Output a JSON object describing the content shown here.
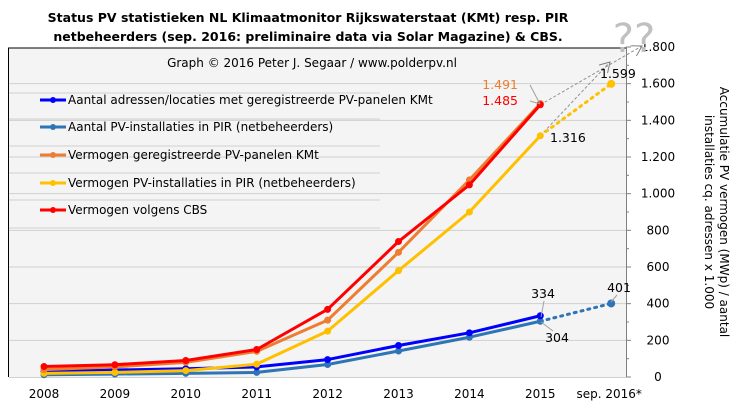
{
  "chart_data": {
    "type": "line",
    "title": "Status PV statistieken NL Klimaatmonitor Rijkswaterstaat (KMt) resp. PIR netbeheerders (sep. 2016: preliminaire data via Solar Magazine) & CBS.",
    "title_lines": [
      "Status PV statistieken NL Klimaatmonitor Rijkswaterstaat (KMt) resp. PIR",
      "netbeheerders (sep. 2016: preliminaire data via Solar Magazine) & CBS."
    ],
    "subtitle": "Graph © 2016 Peter J. Segaar / www.polderpv.nl",
    "xlabel": "",
    "ylabel_lines": [
      "Accumulatie PV vermogen (MWp) / aantal",
      "installaties cq. adressen x 1.000"
    ],
    "categories": [
      "2008",
      "2009",
      "2010",
      "2011",
      "2012",
      "2013",
      "2014",
      "2015",
      "sep. 2016*"
    ],
    "ylim": [
      0,
      1800
    ],
    "yticks": [
      0,
      200,
      400,
      600,
      800,
      1000,
      1200,
      1400,
      1600,
      1800
    ],
    "ytick_labels": [
      "0",
      "200",
      "400",
      "600",
      "800",
      "1.000",
      "1.200",
      "1.400",
      "1.600",
      "1.800"
    ],
    "grid": true,
    "legend_position": "top-left",
    "question_mark": "??",
    "series": [
      {
        "name": "Aantal adressen/locaties met geregistreerde PV-panelen KMt",
        "color": "#0000ff",
        "values": [
          30,
          38,
          45,
          55,
          95,
          172,
          241,
          334,
          null
        ]
      },
      {
        "name": "Aantal PV-installaties in PIR (netbeheerders)",
        "color": "#2e75b6",
        "values": [
          12,
          16,
          20,
          25,
          68,
          142,
          217,
          304,
          401
        ],
        "dotted_last": true
      },
      {
        "name": "Vermogen geregistreerde PV-panelen KMt",
        "color": "#ed7d31",
        "values": [
          40,
          55,
          80,
          140,
          310,
          680,
          1075,
          1491,
          null
        ]
      },
      {
        "name": "Vermogen PV-installaties in PIR (netbeheerders)",
        "color": "#ffc000",
        "values": [
          20,
          25,
          35,
          70,
          250,
          580,
          900,
          1316,
          1599
        ],
        "dotted_last": true
      },
      {
        "name": "Vermogen volgens CBS",
        "color": "#ff0000",
        "values": [
          57,
          67,
          90,
          150,
          369,
          739,
          1048,
          1485,
          null
        ]
      }
    ],
    "annotations": [
      {
        "text": "1.491",
        "series": 2,
        "index": 7,
        "color": "#ed7d31"
      },
      {
        "text": "1.485",
        "series": 4,
        "index": 7,
        "color": "#ff0000"
      },
      {
        "text": "1.316",
        "series": 3,
        "index": 7,
        "color": "#000000"
      },
      {
        "text": "1.599",
        "series": 3,
        "index": 8,
        "color": "#000000"
      },
      {
        "text": "334",
        "series": 0,
        "index": 7,
        "color": "#000000"
      },
      {
        "text": "304",
        "series": 1,
        "index": 7,
        "color": "#000000"
      },
      {
        "text": "401",
        "series": 1,
        "index": 8,
        "color": "#000000"
      }
    ]
  }
}
